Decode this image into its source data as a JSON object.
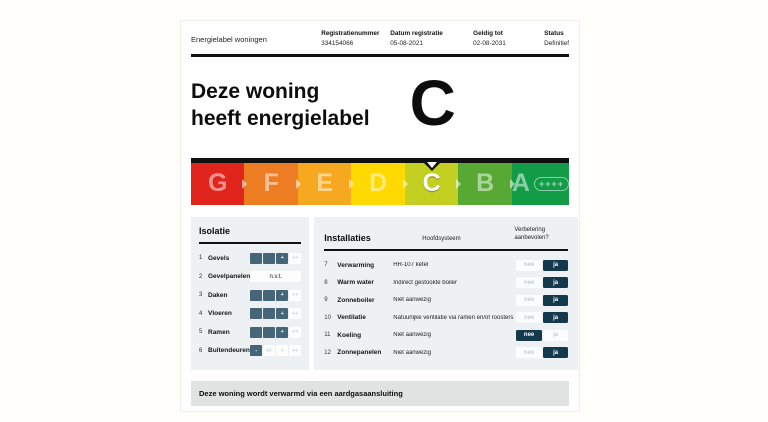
{
  "header": {
    "title": "Energielabel woningen",
    "fields": [
      {
        "label": "Registratienummer",
        "value": "334154066"
      },
      {
        "label": "Datum registratie",
        "value": "05-08-2021"
      },
      {
        "label": "Geldig tot",
        "value": "02-08-2031"
      },
      {
        "label": "Status",
        "value": "Definitief"
      }
    ]
  },
  "hero": {
    "line1": "Deze woning",
    "line2": "heeft energielabel",
    "grade": "C"
  },
  "energy_scale": {
    "segments": [
      {
        "letter": "G",
        "color": "#e0251c",
        "active": false
      },
      {
        "letter": "F",
        "color": "#ed7d23",
        "active": false
      },
      {
        "letter": "E",
        "color": "#f6a820",
        "active": false
      },
      {
        "letter": "D",
        "color": "#ffd900",
        "active": false
      },
      {
        "letter": "C",
        "color": "#c4d021",
        "active": true
      },
      {
        "letter": "B",
        "color": "#58a934",
        "active": false
      },
      {
        "letter": "A",
        "color": "#129c48",
        "active": false,
        "plus": "++++"
      }
    ]
  },
  "isolatie": {
    "title": "Isolatie",
    "rows": [
      {
        "num": "1",
        "label": "Gevels",
        "cells": [
          {
            "text": "",
            "active": true
          },
          {
            "text": "",
            "active": true
          },
          {
            "text": "+",
            "active": true
          },
          {
            "text": "++",
            "active": false
          }
        ]
      },
      {
        "num": "2",
        "label": "Gevelpanelen",
        "value": "n.v.t."
      },
      {
        "num": "3",
        "label": "Daken",
        "cells": [
          {
            "text": "",
            "active": true
          },
          {
            "text": "",
            "active": true
          },
          {
            "text": "+",
            "active": true
          },
          {
            "text": "++",
            "active": false
          }
        ]
      },
      {
        "num": "4",
        "label": "Vloeren",
        "cells": [
          {
            "text": "",
            "active": true
          },
          {
            "text": "",
            "active": true
          },
          {
            "text": "+",
            "active": true
          },
          {
            "text": "++",
            "active": false
          }
        ]
      },
      {
        "num": "5",
        "label": "Ramen",
        "cells": [
          {
            "text": "",
            "active": true
          },
          {
            "text": "",
            "active": true
          },
          {
            "text": "+",
            "active": true
          },
          {
            "text": "++",
            "active": false
          }
        ]
      },
      {
        "num": "6",
        "label": "Buitendeuren",
        "cells": [
          {
            "text": "-",
            "active": true
          },
          {
            "text": "+/-",
            "active": false
          },
          {
            "text": "+",
            "active": false
          },
          {
            "text": "++",
            "active": false
          }
        ]
      }
    ]
  },
  "installaties": {
    "title": "Installaties",
    "col_system": "Hoofdsysteem",
    "col_advice": "Verbetering aanbevolen?",
    "toggle": {
      "no": "nee",
      "yes": "ja"
    },
    "rows": [
      {
        "num": "7",
        "label": "Verwarming",
        "system": "HR-107 ketel",
        "nee_active": false,
        "ja_active": true
      },
      {
        "num": "8",
        "label": "Warm water",
        "system": "Indirect gestookte boiler",
        "nee_active": false,
        "ja_active": true
      },
      {
        "num": "9",
        "label": "Zonneboiler",
        "system": "Niet aanwezig",
        "nee_active": false,
        "ja_active": true
      },
      {
        "num": "10",
        "label": "Ventilatie",
        "system": "Natuurlijke ventilatie via ramen en/of roosters",
        "nee_active": false,
        "ja_active": true
      },
      {
        "num": "11",
        "label": "Koeling",
        "system": "Niet aanwezig",
        "nee_active": true,
        "ja_active": false
      },
      {
        "num": "12",
        "label": "Zonnepanelen",
        "system": "Niet aanwezig",
        "nee_active": false,
        "ja_active": true
      }
    ]
  },
  "footer": {
    "text": "Deze woning wordt verwarmd via een aardgasaansluiting"
  }
}
